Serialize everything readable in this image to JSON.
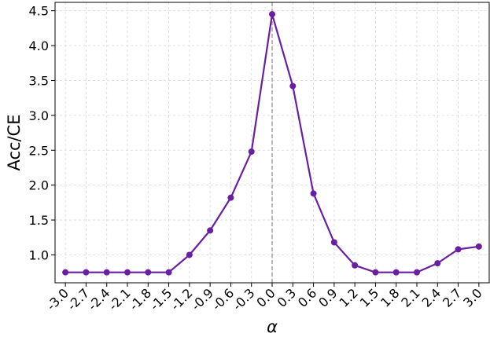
{
  "chart_data": {
    "type": "line",
    "title": "",
    "xlabel": "α",
    "ylabel": "Acc/CE",
    "xlim": [
      -3.15,
      3.15
    ],
    "ylim": [
      0.6,
      4.62
    ],
    "x_ticks": [
      -3.0,
      -2.7,
      -2.4,
      -2.1,
      -1.8,
      -1.5,
      -1.2,
      -0.9,
      -0.6,
      -0.3,
      0.0,
      0.3,
      0.6,
      0.9,
      1.2,
      1.5,
      1.8,
      2.1,
      2.4,
      2.7,
      3.0
    ],
    "x_tick_labels": [
      "-3.0",
      "-2.7",
      "-2.4",
      "-2.1",
      "-1.8",
      "-1.5",
      "-1.2",
      "-0.9",
      "-0.6",
      "-0.3",
      "0.0",
      "0.3",
      "0.6",
      "0.9",
      "1.2",
      "1.5",
      "1.8",
      "2.1",
      "2.4",
      "2.7",
      "3.0"
    ],
    "y_ticks": [
      1.0,
      1.5,
      2.0,
      2.5,
      3.0,
      3.5,
      4.0,
      4.5
    ],
    "y_tick_labels": [
      "1.0",
      "1.5",
      "2.0",
      "2.5",
      "3.0",
      "3.5",
      "4.0",
      "4.5"
    ],
    "grid": true,
    "reference_line_x": 0.0,
    "series": [
      {
        "color": "#6a1fa0",
        "x": [
          -3.0,
          -2.7,
          -2.4,
          -2.1,
          -1.8,
          -1.5,
          -1.2,
          -0.9,
          -0.6,
          -0.3,
          0.0,
          0.3,
          0.6,
          0.9,
          1.2,
          1.5,
          1.8,
          2.1,
          2.4,
          2.7,
          3.0
        ],
        "y": [
          0.75,
          0.75,
          0.75,
          0.75,
          0.75,
          0.75,
          1.0,
          1.35,
          1.82,
          2.48,
          4.45,
          3.42,
          1.88,
          1.18,
          0.85,
          0.75,
          0.75,
          0.75,
          0.88,
          1.08,
          1.12
        ]
      }
    ]
  }
}
